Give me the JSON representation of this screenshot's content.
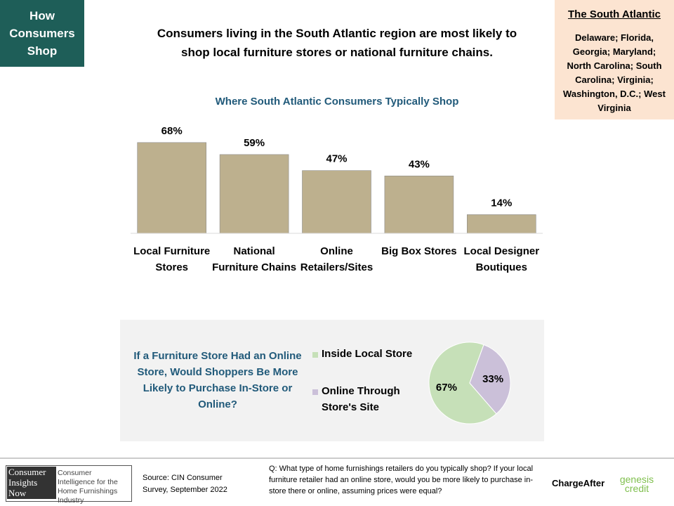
{
  "header": {
    "section": "How Consumers Shop",
    "headline": "Consumers living in the South Atlantic region are most likely to shop local furniture stores or national furniture chains."
  },
  "region": {
    "title": "The South Atlantic",
    "states": "Delaware; Florida, Georgia; Maryland; North Carolina; South Carolina; Virginia; Washington, D.C.; West Virginia"
  },
  "chart_data": [
    {
      "type": "bar",
      "title": "Where South Atlantic Consumers Typically Shop",
      "categories": [
        "Local Furniture Stores",
        "National Furniture Chains",
        "Online Retailers/Sites",
        "Big Box Stores",
        "Local Designer Boutiques"
      ],
      "values": [
        68,
        59,
        47,
        43,
        14
      ],
      "value_labels": [
        "68%",
        "59%",
        "47%",
        "43%",
        "14%"
      ],
      "color": "#bdb08e"
    },
    {
      "type": "pie",
      "title": "If a Furniture Store Had an Online Store, Would Shoppers Be More Likely to Purchase In-Store or Online?",
      "categories": [
        "Inside Local Store",
        "Online Through Store's Site"
      ],
      "values": [
        67,
        33
      ],
      "value_labels": [
        "67%",
        "33%"
      ],
      "colors": [
        "#c6e0b8",
        "#cbc0d9"
      ]
    }
  ],
  "footer": {
    "logo_name": "Consumer Insights Now",
    "logo_tagline": "Consumer Intelligence for the Home Furnishings Industry",
    "source": "Source: CIN Consumer Survey, September 2022",
    "question": "Q: What type of home furnishings retailers do you typically shop? If your local furniture retailer had an online store, would you be more likely to purchase in-store there or online, assuming prices were equal?",
    "sponsors": [
      "ChargeAfter",
      "genesis credit"
    ]
  }
}
